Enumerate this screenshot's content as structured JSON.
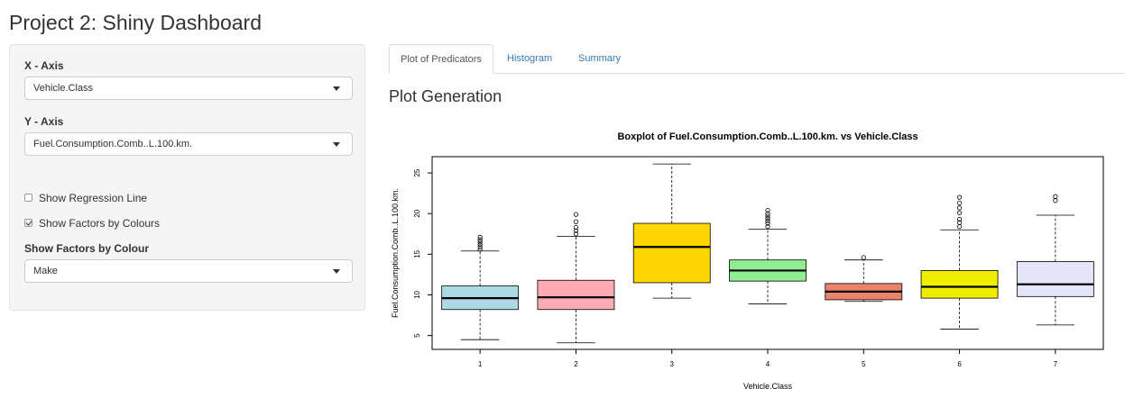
{
  "app": {
    "title": "Project 2: Shiny Dashboard"
  },
  "sidebar": {
    "x_axis": {
      "label": "X - Axis",
      "value": "Vehicle.Class"
    },
    "y_axis": {
      "label": "Y - Axis",
      "value": "Fuel.Consumption.Comb..L.100.km."
    },
    "regression": {
      "label": "Show Regression Line",
      "checked": false
    },
    "factors": {
      "label": "Show Factors by Colours",
      "checked": true
    },
    "colour_select": {
      "label": "Show Factors by Colour",
      "value": "Make"
    }
  },
  "tabs": [
    {
      "label": "Plot of Predicators",
      "active": true
    },
    {
      "label": "Histogram",
      "active": false
    },
    {
      "label": "Summary",
      "active": false
    }
  ],
  "main": {
    "section_title": "Plot Generation"
  },
  "chart_data": {
    "type": "boxplot",
    "title": "Boxplot of Fuel.Consumption.Comb..L.100.km. vs Vehicle.Class",
    "xlabel": "Vehicle.Class",
    "ylabel": "Fuel.Consumption.Comb..L.100.km.",
    "categories": [
      "1",
      "2",
      "3",
      "4",
      "5",
      "6",
      "7"
    ],
    "y_ticks": [
      "5",
      "10",
      "15",
      "20",
      "25"
    ],
    "ylim": [
      3.3,
      27.0
    ],
    "grid": false,
    "boxes": [
      {
        "category": "1",
        "whisker_low": 4.5,
        "q1": 8.2,
        "median": 9.6,
        "q3": 11.1,
        "whisker_high": 15.4,
        "outliers": [
          15.6,
          15.9,
          16.2,
          16.5,
          16.8,
          17.1
        ],
        "color": "#add8e6"
      },
      {
        "category": "2",
        "whisker_low": 4.1,
        "q1": 8.2,
        "median": 9.7,
        "q3": 11.8,
        "whisker_high": 17.2,
        "outliers": [
          17.5,
          17.9,
          18.3,
          19.0,
          19.9
        ],
        "color": "#ffaab4"
      },
      {
        "category": "3",
        "whisker_low": 9.6,
        "q1": 11.5,
        "median": 15.9,
        "q3": 18.8,
        "whisker_high": 26.1,
        "outliers": [],
        "color": "#ffd700"
      },
      {
        "category": "4",
        "whisker_low": 8.9,
        "q1": 11.7,
        "median": 13.0,
        "q3": 14.3,
        "whisker_high": 18.1,
        "outliers": [
          18.4,
          18.8,
          19.1,
          19.4,
          19.7,
          20.0,
          20.4
        ],
        "color": "#90ee90"
      },
      {
        "category": "5",
        "whisker_low": 9.2,
        "q1": 9.4,
        "median": 10.4,
        "q3": 11.4,
        "whisker_high": 14.3,
        "outliers": [
          14.6
        ],
        "color": "#e9846a"
      },
      {
        "category": "6",
        "whisker_low": 5.8,
        "q1": 9.6,
        "median": 11.0,
        "q3": 13.0,
        "whisker_high": 18.0,
        "outliers": [
          18.4,
          18.9,
          19.3,
          20.1,
          20.7,
          21.3,
          22.0
        ],
        "color": "#eeee00"
      },
      {
        "category": "7",
        "whisker_low": 6.3,
        "q1": 9.8,
        "median": 11.3,
        "q3": 14.1,
        "whisker_high": 19.8,
        "outliers": [
          21.6,
          22.1
        ],
        "color": "#e6e6fa"
      }
    ]
  }
}
